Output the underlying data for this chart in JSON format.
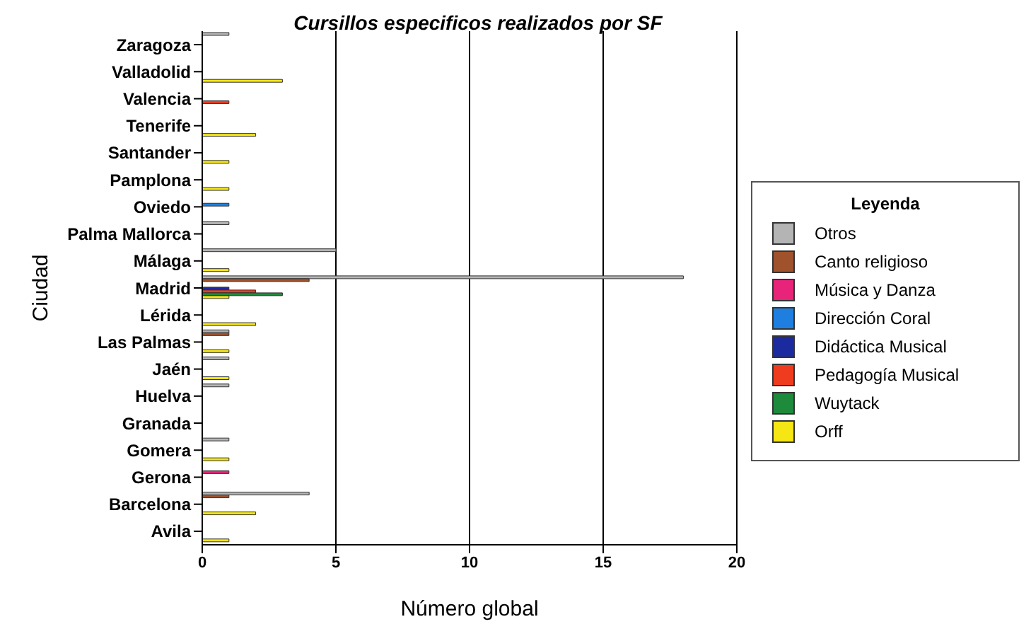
{
  "chart_data": {
    "type": "bar",
    "orientation": "horizontal",
    "title": "Cursillos especificos realizados por SF",
    "xlabel": "Número global",
    "ylabel": "Ciudad",
    "legend_title": "Leyenda",
    "legend": "right",
    "grid": "x",
    "categories": [
      "Zaragoza",
      "Valladolid",
      "Valencia",
      "Tenerife",
      "Santander",
      "Pamplona",
      "Oviedo",
      "Palma Mallorca",
      "Málaga",
      "Madrid",
      "Lérida",
      "Las Palmas",
      "Jaén",
      "Huelva",
      "Granada",
      "Gomera",
      "Gerona",
      "Barcelona",
      "Avila"
    ],
    "xlim": [
      0,
      20
    ],
    "xticks": [
      0,
      5,
      10,
      15,
      20
    ],
    "series": [
      {
        "name": "Otros",
        "color": "#b4b4b4",
        "values": [
          1,
          null,
          null,
          null,
          null,
          null,
          null,
          1,
          5,
          18,
          null,
          1,
          1,
          1,
          null,
          1,
          null,
          4,
          null
        ]
      },
      {
        "name": "Canto religioso",
        "color": "#a0522d",
        "values": [
          null,
          null,
          null,
          null,
          null,
          null,
          null,
          null,
          null,
          4,
          null,
          1,
          null,
          null,
          null,
          null,
          null,
          1,
          null
        ]
      },
      {
        "name": "Música y Danza",
        "color": "#e8237a",
        "values": [
          null,
          null,
          null,
          null,
          null,
          null,
          null,
          null,
          null,
          null,
          null,
          null,
          null,
          null,
          null,
          null,
          1,
          null,
          null
        ]
      },
      {
        "name": "Dirección Coral",
        "color": "#1e7fe0",
        "values": [
          null,
          null,
          null,
          null,
          null,
          null,
          1,
          null,
          null,
          null,
          null,
          null,
          null,
          null,
          null,
          null,
          null,
          null,
          null
        ]
      },
      {
        "name": "Didáctica Musical",
        "color": "#1c2aa0",
        "values": [
          null,
          null,
          null,
          null,
          null,
          null,
          null,
          null,
          null,
          1,
          null,
          null,
          null,
          null,
          null,
          null,
          null,
          null,
          null
        ]
      },
      {
        "name": "Pedagogía Musical",
        "color": "#f03c1e",
        "values": [
          null,
          null,
          1,
          null,
          null,
          null,
          null,
          null,
          null,
          2,
          null,
          null,
          null,
          null,
          null,
          null,
          null,
          null,
          null
        ]
      },
      {
        "name": "Wuytack",
        "color": "#1e8a3c",
        "values": [
          null,
          null,
          null,
          null,
          null,
          null,
          null,
          null,
          null,
          3,
          null,
          null,
          null,
          null,
          null,
          null,
          null,
          null,
          null
        ]
      },
      {
        "name": "Orff",
        "color": "#f5e614",
        "values": [
          null,
          3,
          null,
          2,
          1,
          1,
          null,
          null,
          1,
          1,
          2,
          1,
          1,
          null,
          null,
          1,
          null,
          2,
          1
        ]
      }
    ]
  }
}
